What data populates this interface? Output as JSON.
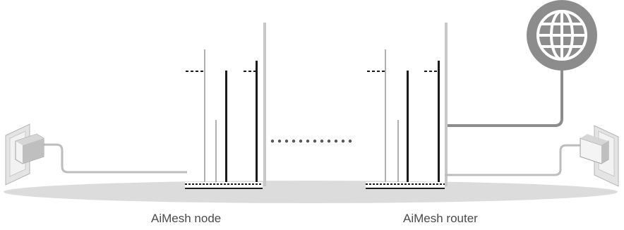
{
  "labels": {
    "node": "AiMesh node",
    "router": "AiMesh router"
  },
  "icons": [
    "globe-icon",
    "wall-outlet-icon",
    "power-adapter-icon",
    "router-icon",
    "wireless-link-dots-icon"
  ],
  "colors": {
    "line": "#8c8c8c",
    "floor": "#dcdcdc",
    "antenna_dark": "#1a1a1a",
    "antenna_light": "#a8a8a8"
  }
}
